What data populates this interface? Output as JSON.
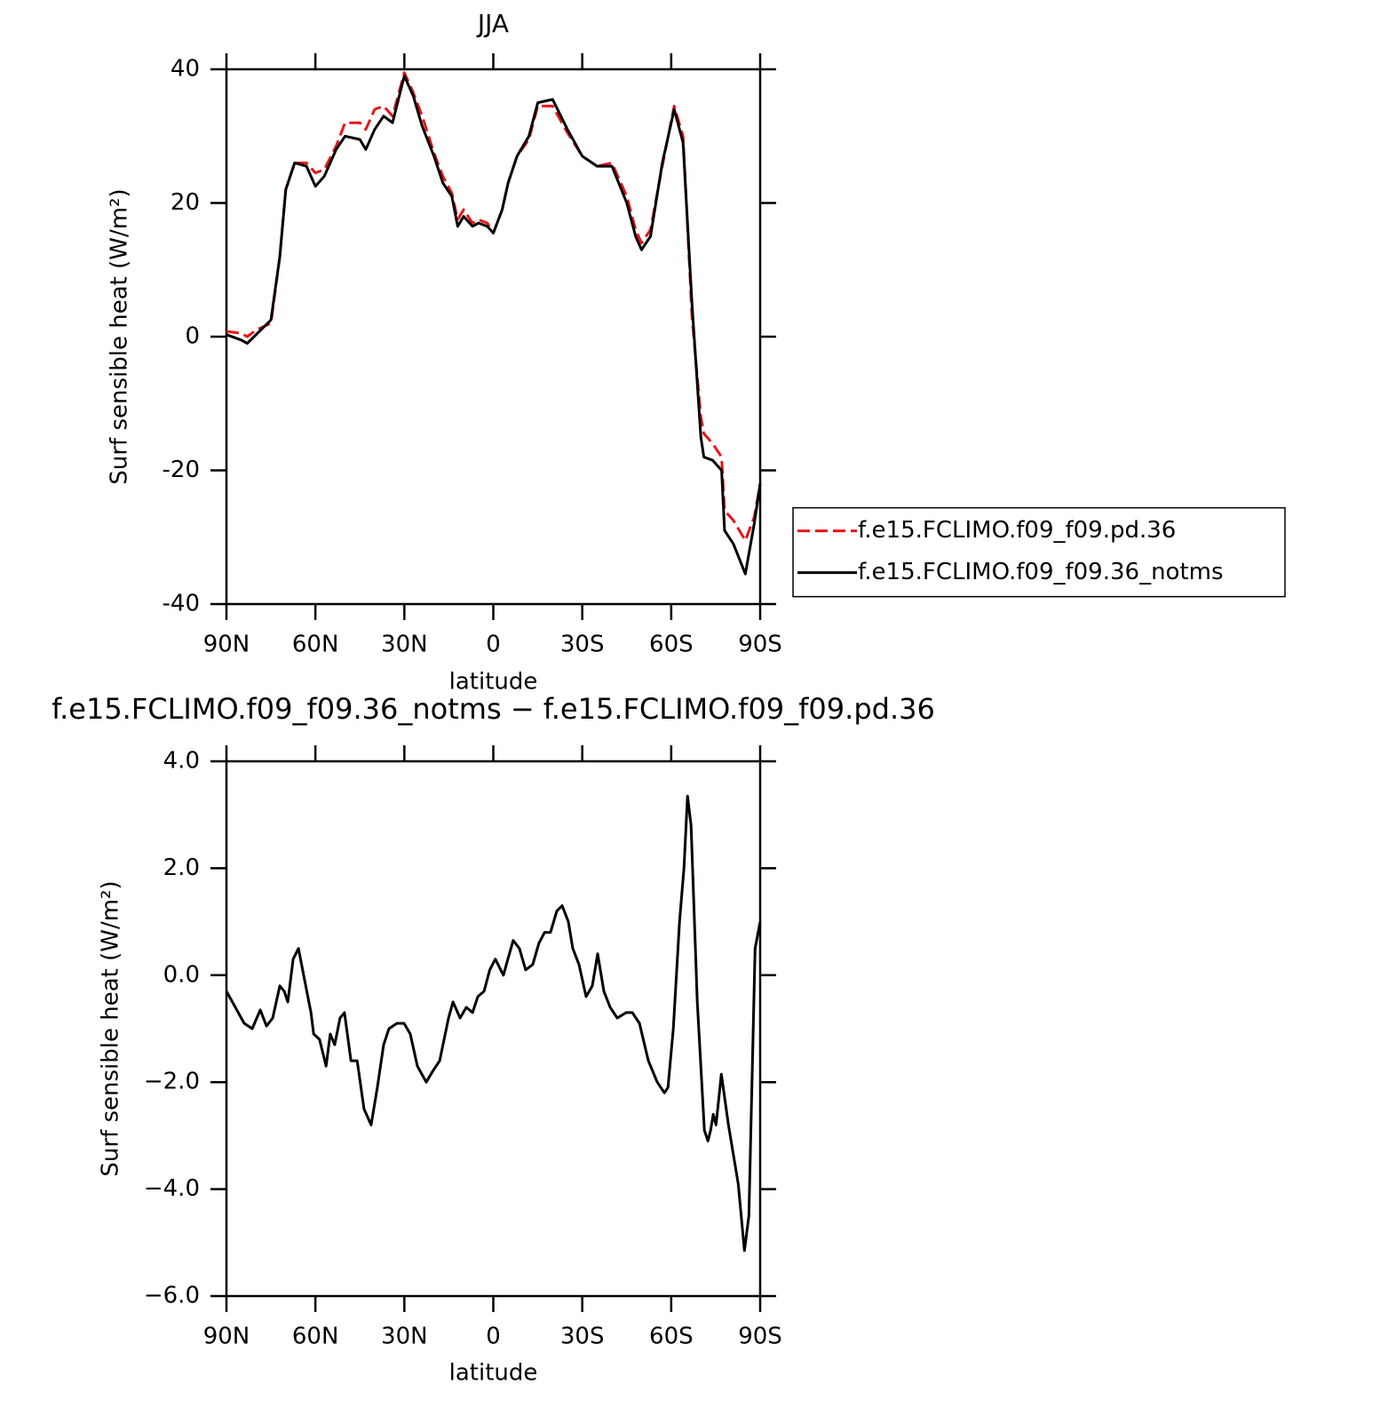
{
  "chart_data": [
    {
      "type": "line",
      "title": "JJA",
      "xlabel": "latitude",
      "ylabel": "Surf sensible heat (W/m²)",
      "xlim": [
        90,
        -90
      ],
      "xticks": [
        {
          "value": 90,
          "label": "90N"
        },
        {
          "value": 60,
          "label": "60N"
        },
        {
          "value": 30,
          "label": "30N"
        },
        0,
        {
          "value": -30,
          "label": "30S"
        },
        {
          "value": -60,
          "label": "60S"
        },
        {
          "value": -90,
          "label": "90S"
        }
      ],
      "ylim": [
        -40,
        40
      ],
      "yticks": [
        -40,
        -20,
        0,
        20,
        40
      ],
      "legend": "right",
      "x": [
        90,
        85,
        83,
        80,
        75,
        72,
        70,
        67,
        63,
        60,
        57,
        53,
        50,
        45,
        43,
        40,
        37,
        34,
        30,
        27,
        24,
        20,
        17,
        14,
        12,
        10,
        7,
        5,
        2,
        0,
        -3,
        -5,
        -8,
        -12,
        -15,
        -20,
        -25,
        -30,
        -35,
        -40,
        -45,
        -48,
        -50,
        -53,
        -57,
        -61,
        -64,
        -67,
        -70,
        -71,
        -74,
        -77,
        -78,
        -81,
        -85,
        -88,
        -90
      ],
      "series": [
        {
          "name": "f.e15.FCLIMO.f09_f09.pd.36",
          "color": "#e8141a",
          "linestyle": "dashed",
          "values": [
            0.8,
            0.5,
            0,
            1,
            2,
            12,
            22,
            26,
            26,
            24.5,
            25,
            28.5,
            32,
            32,
            31,
            34,
            34.5,
            33,
            39.5,
            36.5,
            33,
            27.5,
            24,
            21.5,
            17.5,
            19,
            17,
            17.5,
            17,
            15.5,
            19,
            23,
            27,
            29.5,
            34.5,
            34.5,
            30.5,
            27,
            25.5,
            26,
            21,
            16,
            14,
            16,
            25.5,
            34.5,
            30,
            3,
            -12,
            -14.5,
            -16,
            -18,
            -26,
            -27.5,
            -30.5,
            -27,
            -22
          ]
        },
        {
          "name": "f.e15.FCLIMO.f09_f09.36_notms",
          "color": "#000000",
          "linestyle": "solid",
          "values": [
            0.3,
            -0.5,
            -1,
            0.3,
            2.5,
            12,
            22,
            26,
            25.5,
            22.5,
            24,
            28,
            30,
            29.5,
            28,
            31,
            33,
            32,
            39,
            36,
            31.5,
            27,
            23,
            21,
            16.5,
            18,
            16.5,
            17,
            16.5,
            15.5,
            19,
            23,
            27,
            30,
            35,
            35.5,
            31,
            27,
            25.5,
            25.5,
            20,
            15,
            13,
            15,
            26,
            34,
            29,
            5,
            -15,
            -18,
            -18.5,
            -20,
            -29,
            -31,
            -35.5,
            -28,
            -22
          ]
        }
      ]
    },
    {
      "type": "line",
      "title": "f.e15.FCLIMO.f09_f09.36_notms − f.e15.FCLIMO.f09_f09.pd.36",
      "xlabel": "latitude",
      "ylabel": "Surf sensible heat (W/m²)",
      "xlim": [
        90,
        -90
      ],
      "xticks": [
        {
          "value": 90,
          "label": "90N"
        },
        {
          "value": 60,
          "label": "60N"
        },
        {
          "value": 30,
          "label": "30N"
        },
        0,
        {
          "value": -30,
          "label": "30S"
        },
        {
          "value": -60,
          "label": "60S"
        },
        {
          "value": -90,
          "label": "90S"
        }
      ],
      "ylim": [
        -6,
        4
      ],
      "yticks": [
        {
          "value": -6,
          "label": "−6.0"
        },
        {
          "value": -4,
          "label": "−4.0"
        },
        {
          "value": -2,
          "label": "−2.0"
        },
        {
          "value": 0,
          "label": "0.0"
        },
        {
          "value": 2,
          "label": "2.0"
        },
        {
          "value": 4,
          "label": "4.0"
        }
      ],
      "x": [
        90,
        87,
        84,
        81.3,
        78.6,
        76.5,
        74.4,
        72,
        70.5,
        69.3,
        67.5,
        65.7,
        63.6,
        61.5,
        60.6,
        58.6,
        56.4,
        55,
        53.5,
        51.7,
        50.2,
        48,
        45.9,
        43.6,
        41.2,
        39.1,
        37,
        35.2,
        32.5,
        30.1,
        28,
        25.6,
        22.6,
        20.5,
        18.1,
        15.1,
        13.6,
        11.2,
        9.1,
        7,
        5.2,
        3.1,
        1.2,
        -0.7,
        -3.4,
        -4.9,
        -6.7,
        -8.8,
        -10.9,
        -13.3,
        -15.4,
        -17.3,
        -19.3,
        -21.4,
        -23.2,
        -25.3,
        -26.8,
        -28.9,
        -31.3,
        -33.4,
        -35.2,
        -37.3,
        -39.4,
        -41.8,
        -44.8,
        -46.9,
        -49.3,
        -52.3,
        -55.3,
        -57.7,
        -58.9,
        -60.7,
        -62.8,
        -64.3,
        -65.5,
        -66.7,
        -68.8,
        -71.2,
        -72.4,
        -73.3,
        -74.2,
        -75.1,
        -76.9,
        -79.3,
        -81.1,
        -82.6,
        -84.7,
        -86.2,
        -88.3,
        -90
      ],
      "series": [
        {
          "color": "#000000",
          "linestyle": "solid",
          "values": [
            -0.3,
            -0.6,
            -0.9,
            -1.0,
            -0.65,
            -0.95,
            -0.8,
            -0.2,
            -0.3,
            -0.5,
            0.3,
            0.5,
            -0.1,
            -0.7,
            -1.1,
            -1.2,
            -1.7,
            -1.1,
            -1.3,
            -0.8,
            -0.7,
            -1.6,
            -1.6,
            -2.5,
            -2.8,
            -2.1,
            -1.3,
            -1.0,
            -0.9,
            -0.9,
            -1.1,
            -1.7,
            -2.0,
            -1.8,
            -1.6,
            -0.8,
            -0.5,
            -0.8,
            -0.6,
            -0.7,
            -0.4,
            -0.3,
            0.1,
            0.3,
            0.0,
            0.3,
            0.65,
            0.5,
            0.1,
            0.2,
            0.6,
            0.8,
            0.8,
            1.2,
            1.3,
            1.0,
            0.5,
            0.2,
            -0.4,
            -0.2,
            0.4,
            -0.3,
            -0.6,
            -0.8,
            -0.7,
            -0.7,
            -0.9,
            -1.6,
            -2.0,
            -2.2,
            -2.1,
            -1.0,
            1.0,
            2.0,
            3.35,
            2.8,
            -0.5,
            -2.9,
            -3.1,
            -2.9,
            -2.6,
            -2.8,
            -1.85,
            -2.8,
            -3.4,
            -3.9,
            -5.15,
            -4.5,
            0.5,
            1.0
          ]
        }
      ]
    }
  ]
}
